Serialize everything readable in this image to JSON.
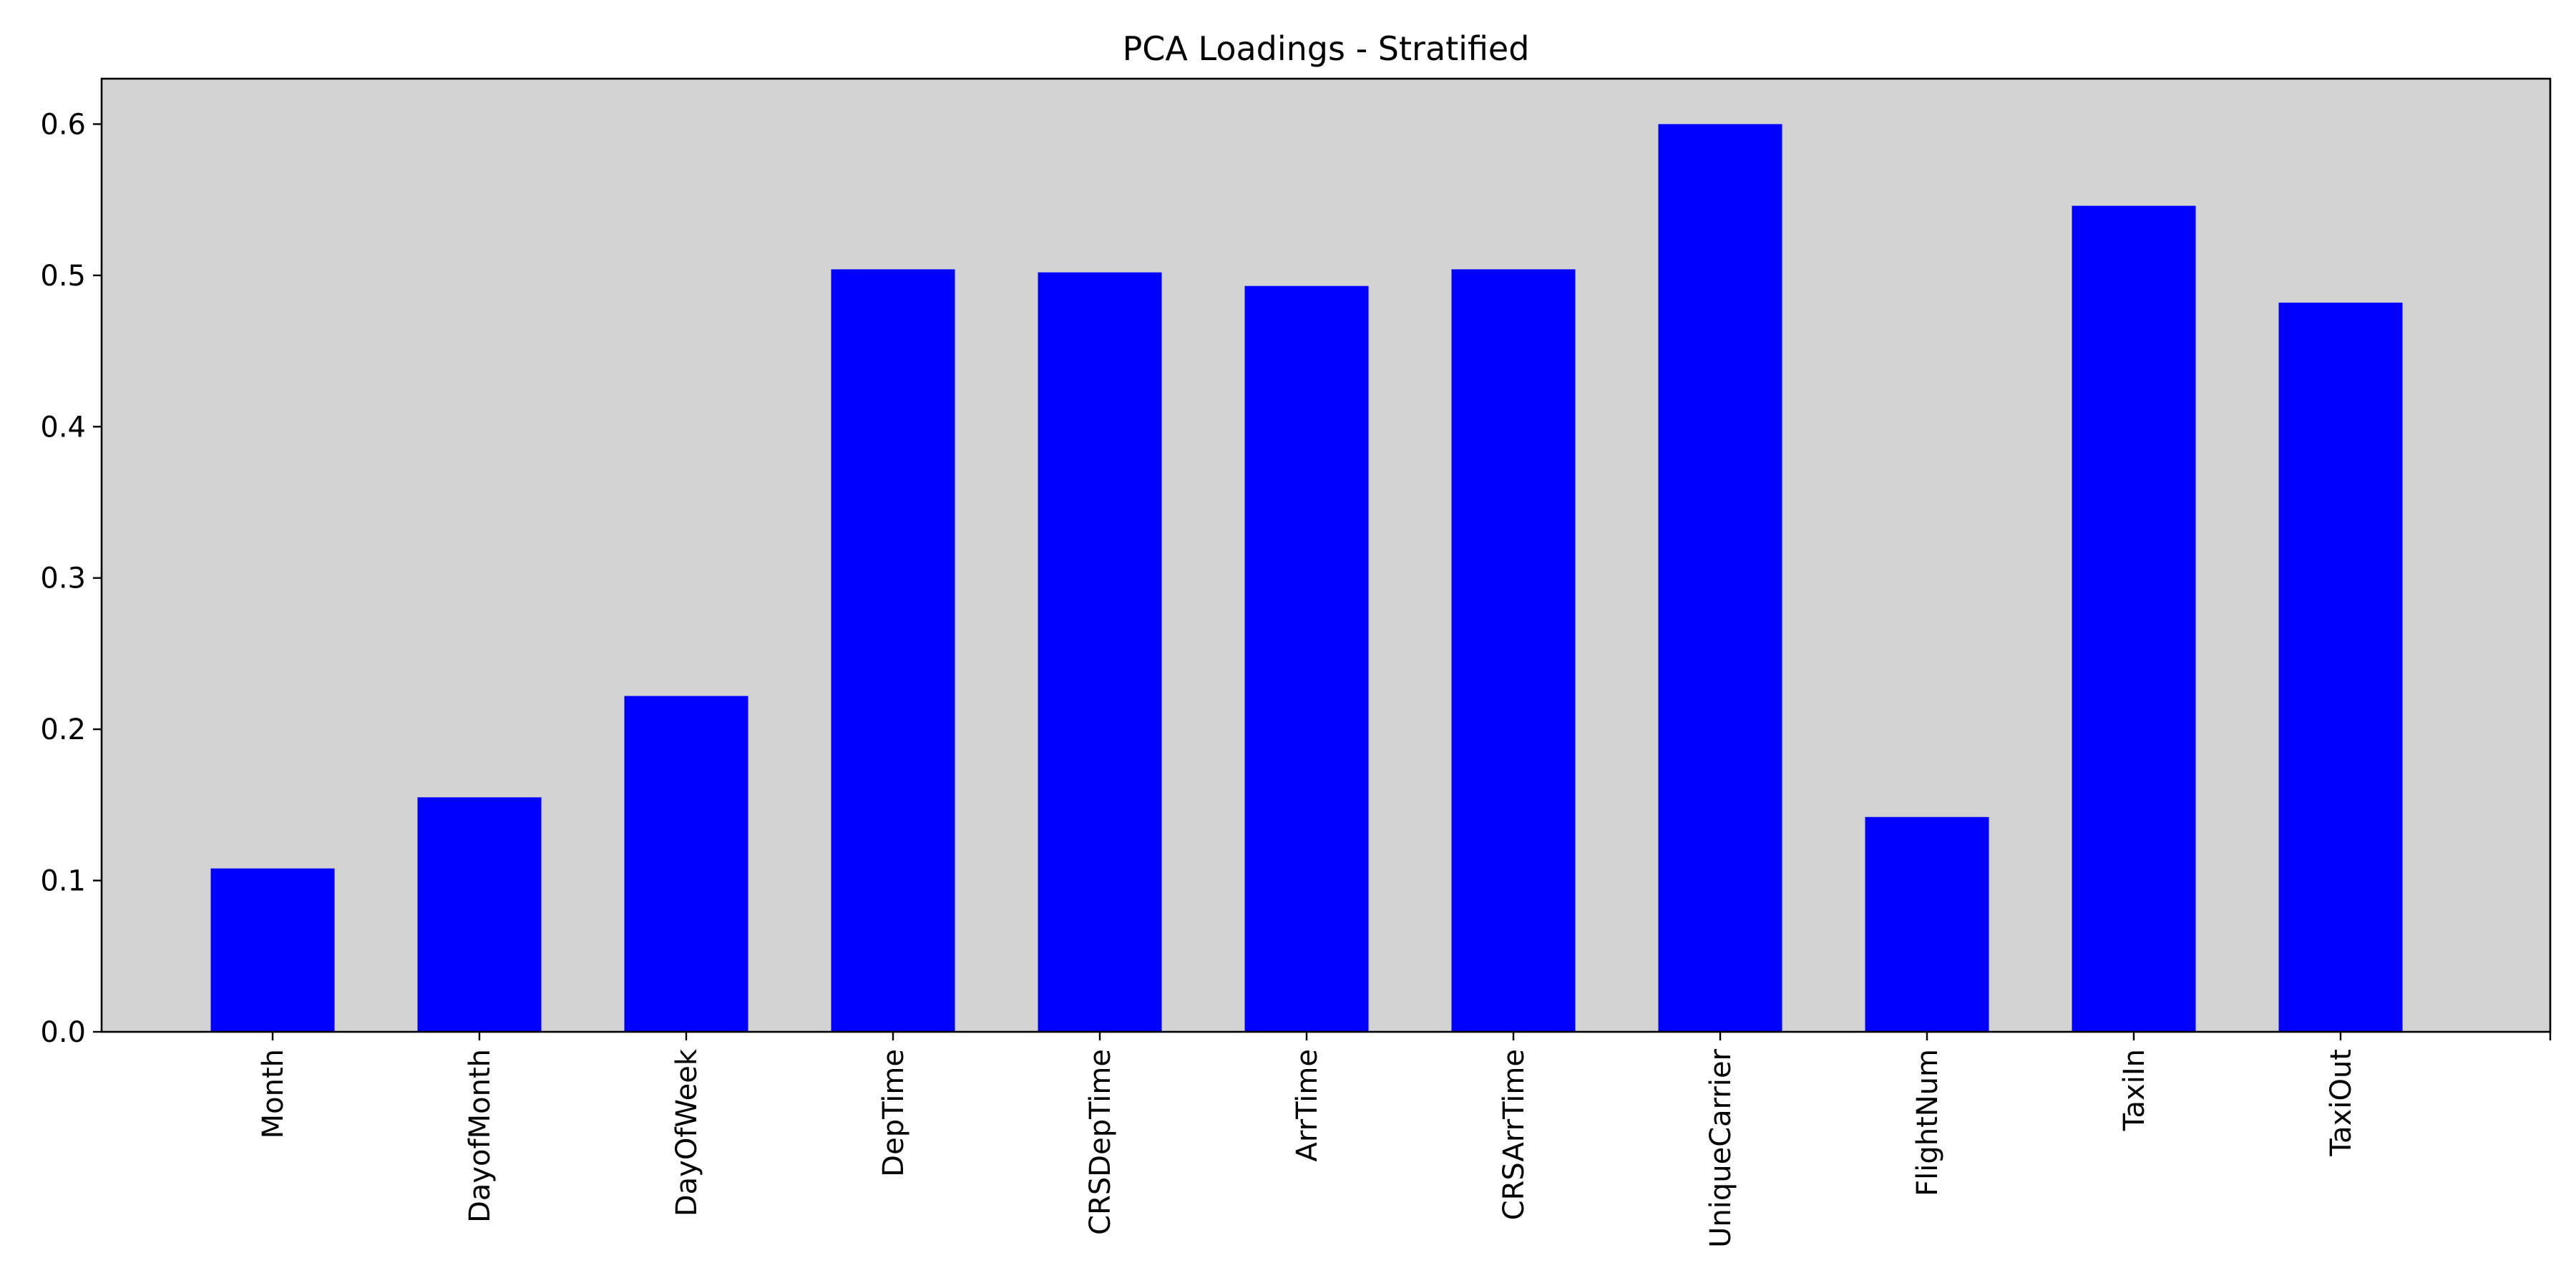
{
  "chart_data": {
    "type": "bar",
    "title": "PCA Loadings - Stratified",
    "xlabel": "",
    "ylabel": "",
    "categories": [
      "Month",
      "DayofMonth",
      "DayOfWeek",
      "DepTime",
      "CRSDepTime",
      "ArrTime",
      "CRSArrTime",
      "UniqueCarrier",
      "FlightNum",
      "TaxiIn",
      "TaxiOut"
    ],
    "values": [
      0.108,
      0.155,
      0.222,
      0.504,
      0.502,
      0.493,
      0.504,
      0.6,
      0.142,
      0.546,
      0.482
    ],
    "ylim": [
      0,
      0.63
    ],
    "yticks": [
      "0.0",
      "0.1",
      "0.2",
      "0.3",
      "0.4",
      "0.5",
      "0.6"
    ],
    "legend": "none",
    "grid": false,
    "colors": {
      "bar": "#0000ff",
      "plot_background": "#d3d3d3",
      "page_background": "#ffffff"
    }
  }
}
